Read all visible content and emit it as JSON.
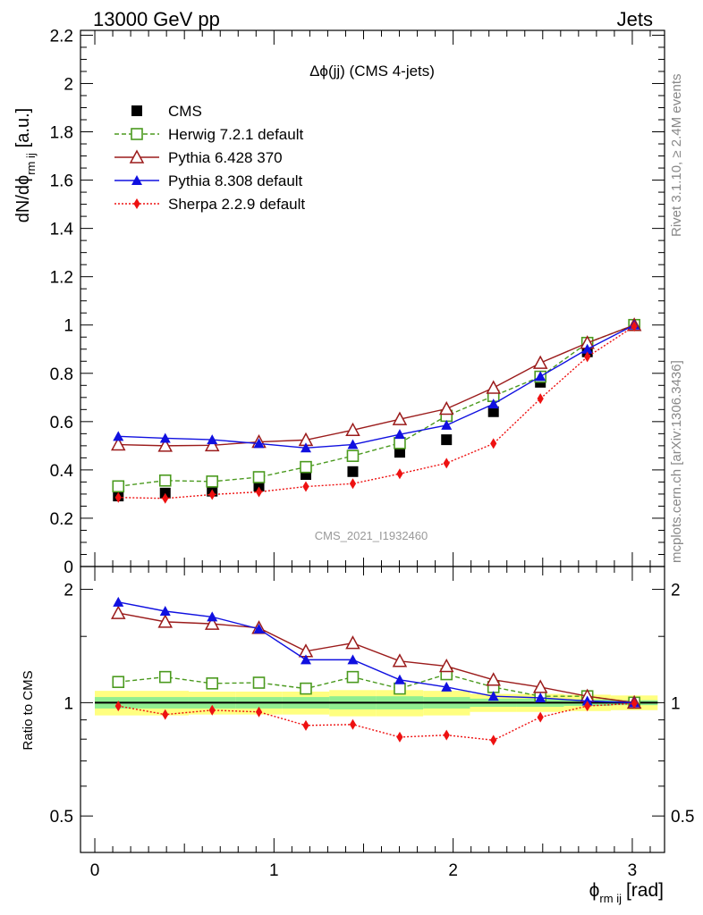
{
  "header": {
    "left": "13000 GeV pp",
    "right": "Jets"
  },
  "side": {
    "rivet": "Rivet 3.1.10, ≥ 2.4M events",
    "mcplots": "mcplots.cern.ch [arXiv:1306.3436]"
  },
  "watermark": "CMS_2021_I1932460",
  "chart_data": [
    {
      "type": "scatter",
      "title": "Δϕ(jj) (CMS 4-jets)",
      "ylabel": "dN/dϕ",
      "ylabel_sub": "rm ij",
      "ylabel_unit": "[a.u.]",
      "xlim": [
        -0.08,
        3.18
      ],
      "ylim": [
        0,
        2.22
      ],
      "yticks": [
        0,
        0.2,
        0.4,
        0.6,
        0.8,
        1,
        1.2,
        1.4,
        1.6,
        1.8,
        2,
        2.2
      ],
      "ytick_labels": [
        "0",
        "0.2",
        "0.4",
        "0.6",
        "0.8",
        "1",
        "1.2",
        "1.4",
        "1.6",
        "1.8",
        "2",
        "2.2"
      ],
      "legend_position": "top-left",
      "x": [
        0.131,
        0.393,
        0.655,
        0.916,
        1.178,
        1.44,
        1.702,
        1.963,
        2.225,
        2.487,
        2.749,
        3.011
      ],
      "series": [
        {
          "name": "CMS",
          "color": "#000000",
          "marker": "square-filled",
          "line": "none",
          "values": [
            0.292,
            0.304,
            0.312,
            0.333,
            0.381,
            0.393,
            0.473,
            0.525,
            0.641,
            0.763,
            0.889,
            1.0
          ]
        },
        {
          "name": "Herwig 7.2.1 default",
          "color": "#4b9a1f",
          "marker": "square-open",
          "line": "dashed",
          "values": [
            0.332,
            0.356,
            0.352,
            0.37,
            0.412,
            0.458,
            0.511,
            0.624,
            0.706,
            0.786,
            0.926,
            1.0
          ]
        },
        {
          "name": "Pythia 6.428 370",
          "color": "#9b1b1b",
          "marker": "triangle-open",
          "line": "solid",
          "values": [
            0.505,
            0.5,
            0.502,
            0.516,
            0.524,
            0.565,
            0.61,
            0.653,
            0.74,
            0.843,
            0.926,
            1.0
          ]
        },
        {
          "name": "Pythia 8.308 default",
          "color": "#1010e0",
          "marker": "triangle-filled",
          "line": "solid",
          "values": [
            0.539,
            0.531,
            0.525,
            0.509,
            0.491,
            0.505,
            0.547,
            0.585,
            0.673,
            0.787,
            0.9,
            1.0
          ]
        },
        {
          "name": "Sherpa 2.2.9 default",
          "color": "#ee1111",
          "marker": "diamond-filled",
          "line": "dotted",
          "values": [
            0.286,
            0.282,
            0.298,
            0.309,
            0.331,
            0.343,
            0.384,
            0.428,
            0.509,
            0.695,
            0.868,
            0.995
          ]
        }
      ]
    },
    {
      "type": "scatter",
      "ylabel": "Ratio to CMS",
      "xlabel": "ϕ",
      "xlabel_sub": "rm ij",
      "xlabel_unit": "[rad]",
      "yscale": "log",
      "ylim": [
        0.4,
        2.3
      ],
      "xticks": [
        0,
        1,
        2,
        3
      ],
      "xtick_labels": [
        "0",
        "1",
        "2",
        "3"
      ],
      "yticks": [
        0.5,
        1,
        2
      ],
      "ytick_labels": [
        "0.5",
        "1",
        "2"
      ],
      "x": [
        0.131,
        0.393,
        0.655,
        0.916,
        1.178,
        1.44,
        1.702,
        1.963,
        2.225,
        2.487,
        2.749,
        3.011
      ],
      "bins": [
        {
          "lo": 0.0,
          "hi": 0.262,
          "stat": 0.035,
          "tot": 0.075
        },
        {
          "lo": 0.262,
          "hi": 0.524,
          "stat": 0.035,
          "tot": 0.075
        },
        {
          "lo": 0.524,
          "hi": 0.785,
          "stat": 0.035,
          "tot": 0.07
        },
        {
          "lo": 0.785,
          "hi": 1.047,
          "stat": 0.035,
          "tot": 0.07
        },
        {
          "lo": 1.047,
          "hi": 1.309,
          "stat": 0.035,
          "tot": 0.07
        },
        {
          "lo": 1.309,
          "hi": 1.571,
          "stat": 0.04,
          "tot": 0.08
        },
        {
          "lo": 1.571,
          "hi": 1.833,
          "stat": 0.04,
          "tot": 0.08
        },
        {
          "lo": 1.833,
          "hi": 2.094,
          "stat": 0.035,
          "tot": 0.075
        },
        {
          "lo": 2.094,
          "hi": 2.356,
          "stat": 0.025,
          "tot": 0.055
        },
        {
          "lo": 2.356,
          "hi": 2.618,
          "stat": 0.025,
          "tot": 0.055
        },
        {
          "lo": 2.618,
          "hi": 2.88,
          "stat": 0.02,
          "tot": 0.05
        },
        {
          "lo": 2.88,
          "hi": 3.1416,
          "stat": 0.015,
          "tot": 0.045
        }
      ],
      "band_colors": {
        "stat": "#90ee90",
        "tot": "#ffff80"
      },
      "series": [
        {
          "name": "Herwig 7.2.1 default",
          "color": "#4b9a1f",
          "marker": "square-open",
          "line": "dashed",
          "values": [
            1.135,
            1.17,
            1.125,
            1.13,
            1.09,
            1.17,
            1.09,
            1.19,
            1.1,
            1.04,
            1.04,
            1.0
          ]
        },
        {
          "name": "Pythia 6.428 370",
          "color": "#9b1b1b",
          "marker": "triangle-open",
          "line": "solid",
          "values": [
            1.73,
            1.64,
            1.62,
            1.58,
            1.37,
            1.44,
            1.29,
            1.25,
            1.15,
            1.1,
            1.04,
            1.0
          ]
        },
        {
          "name": "Pythia 8.308 default",
          "color": "#1010e0",
          "marker": "triangle-filled",
          "line": "solid",
          "values": [
            1.85,
            1.75,
            1.69,
            1.57,
            1.3,
            1.3,
            1.15,
            1.1,
            1.04,
            1.03,
            1.01,
            1.0
          ]
        },
        {
          "name": "Sherpa 2.2.9 default",
          "color": "#ee1111",
          "marker": "diamond-filled",
          "line": "dotted",
          "values": [
            0.98,
            0.93,
            0.955,
            0.945,
            0.87,
            0.875,
            0.81,
            0.82,
            0.795,
            0.915,
            0.98,
            0.995
          ]
        }
      ]
    }
  ]
}
